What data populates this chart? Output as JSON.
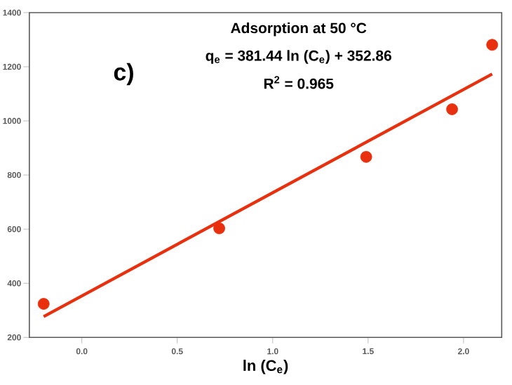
{
  "chart_data": {
    "type": "scatter",
    "title": "Adsorption at 50 °C",
    "xlabel": "ln (C$_{e}$)",
    "annotations": [
      "c)",
      "q$_{e}$ = 381.44 ln (C$_{e}$) + 352.86",
      "R$^{2}$ = 0.965"
    ],
    "series": [
      {
        "color": "#e8300e",
        "marker": "circle",
        "x": [
          -0.2,
          0.72,
          1.49,
          1.94,
          2.15
        ],
        "values": [
          324,
          603,
          867,
          1043,
          1281
        ]
      },
      {
        "type": "line",
        "color": "#e8300e",
        "marker": "none",
        "x": [
          -0.2,
          2.15
        ],
        "values": [
          277,
          1173
        ]
      }
    ],
    "xlim": [
      -0.275,
      2.2
    ],
    "xticks": [
      {
        "value": 0,
        "label": "0.0"
      },
      {
        "value": 0.5,
        "label": "0.5"
      },
      {
        "value": 1,
        "label": "1.0"
      },
      {
        "value": 1.5,
        "label": "1.5"
      },
      {
        "value": 2,
        "label": "2.0"
      }
    ],
    "ylim": [
      200,
      1400
    ],
    "yticks": [
      200,
      400,
      600,
      800,
      1000,
      1200,
      1400
    ],
    "grid": false
  }
}
